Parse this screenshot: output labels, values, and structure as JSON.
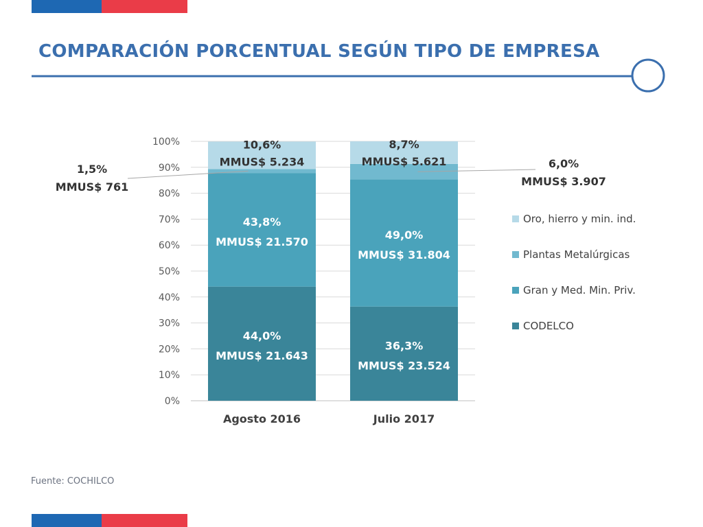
{
  "title": "COMPARACIÓN PORCENTUAL SEGÚN TIPO DE EMPRESA",
  "source": "Fuente: COCHILCO",
  "colors": {
    "brand_blue": "#1e68b3",
    "brand_red": "#ea3c48",
    "title": "#3b6fae",
    "codelco": "#3a8599",
    "gran_med": "#4aa3bb",
    "plantas": "#71b9cf",
    "oro": "#b6dae8"
  },
  "chart_data": {
    "type": "bar",
    "stacked": true,
    "percent": true,
    "title": "",
    "xlabel": "",
    "ylabel": "",
    "ylim": [
      0,
      100
    ],
    "yticks": [
      "0%",
      "10%",
      "20%",
      "30%",
      "40%",
      "50%",
      "60%",
      "70%",
      "80%",
      "90%",
      "100%"
    ],
    "grid": true,
    "legend_position": "right",
    "categories": [
      "Agosto 2016",
      "Julio 2017"
    ],
    "series": [
      {
        "name": "CODELCO",
        "color": "#3a8599",
        "values": [
          44.0,
          36.3
        ],
        "labels": [
          [
            "44,0%",
            "MMUS$ 21.643"
          ],
          [
            "36,3%",
            "MMUS$ 23.524"
          ]
        ]
      },
      {
        "name": "Gran y Med. Min. Priv.",
        "color": "#4aa3bb",
        "values": [
          43.8,
          49.0
        ],
        "labels": [
          [
            "43,8%",
            "MMUS$ 21.570"
          ],
          [
            "49,0%",
            "MMUS$ 31.804"
          ]
        ]
      },
      {
        "name": "Plantas Metalúrgicas",
        "color": "#71b9cf",
        "values": [
          1.5,
          6.0
        ],
        "labels": [
          [
            "1,5%",
            "MMUS$ 761"
          ],
          [
            "6,0%",
            "MMUS$ 3.907"
          ]
        ]
      },
      {
        "name": "Oro, hierro y min. ind.",
        "color": "#b6dae8",
        "values": [
          10.6,
          8.7
        ],
        "labels": [
          [
            "10,6%",
            "MMUS$ 5.234"
          ],
          [
            "8,7%",
            "MMUS$ 5.621"
          ]
        ]
      }
    ]
  }
}
